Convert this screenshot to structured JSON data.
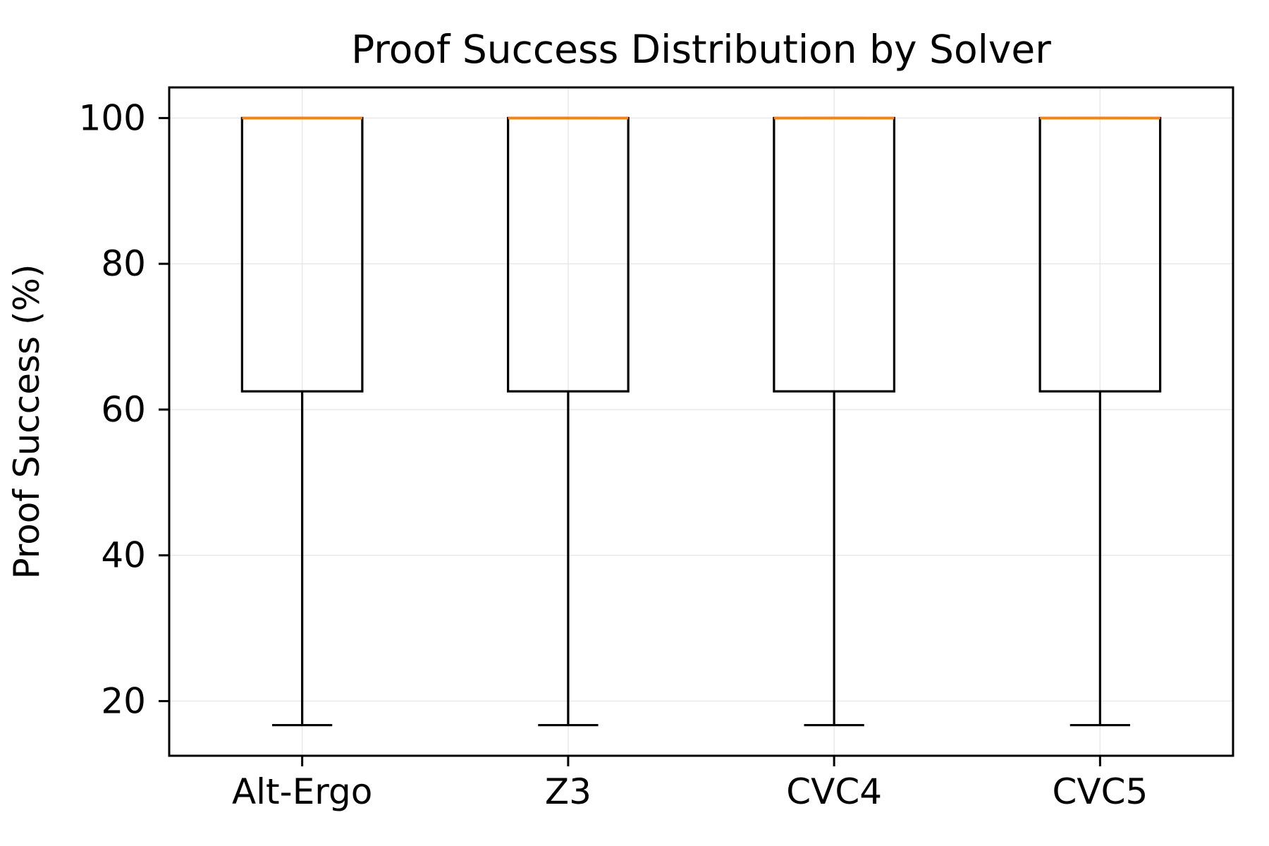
{
  "chart_data": {
    "type": "box",
    "title": "Proof Success Distribution by Solver",
    "ylabel": "Proof Success (%)",
    "xlabel": "",
    "categories": [
      "Alt-Ergo",
      "Z3",
      "CVC4",
      "CVC5"
    ],
    "yticks": [
      20,
      40,
      60,
      80,
      100
    ],
    "ylim": [
      12.5,
      104.2
    ],
    "grid": true,
    "legend": null,
    "series": [
      {
        "name": "Alt-Ergo",
        "low": 16.7,
        "q1": 62.5,
        "median": 100,
        "q3": 100,
        "high": 100
      },
      {
        "name": "Z3",
        "low": 16.7,
        "q1": 62.5,
        "median": 100,
        "q3": 100,
        "high": 100
      },
      {
        "name": "CVC4",
        "low": 16.7,
        "q1": 62.5,
        "median": 100,
        "q3": 100,
        "high": 100
      },
      {
        "name": "CVC5",
        "low": 16.7,
        "q1": 62.5,
        "median": 100,
        "q3": 100,
        "high": 100
      }
    ],
    "colors": {
      "median": "#ff7f0e",
      "box_line": "#000000",
      "grid": "#e7e7e7",
      "background": "#ffffff",
      "text": "#000000"
    }
  }
}
